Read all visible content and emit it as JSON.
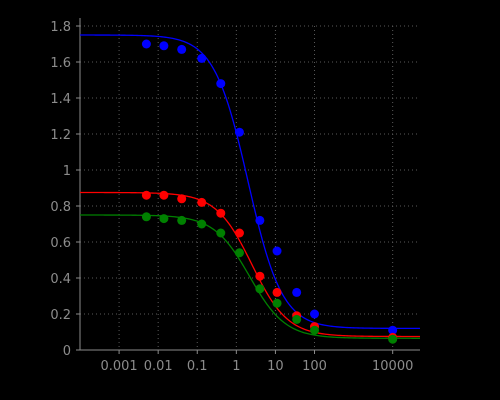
{
  "chart_data": {
    "type": "scatter",
    "title": "",
    "xlabel": "",
    "ylabel": "",
    "xscale": "log",
    "xlim": [
      0.0001,
      50000
    ],
    "ylim": [
      0,
      1.8
    ],
    "grid": true,
    "legend": "none",
    "x_ticks": [
      {
        "value": 0.001,
        "label": "0.001"
      },
      {
        "value": 0.01,
        "label": "0.01"
      },
      {
        "value": 0.1,
        "label": "0.1"
      },
      {
        "value": 1,
        "label": "1"
      },
      {
        "value": 10,
        "label": "10"
      },
      {
        "value": 100,
        "label": "100"
      },
      {
        "value": 10000,
        "label": "10000"
      }
    ],
    "y_ticks": [
      {
        "value": 0,
        "label": "0"
      },
      {
        "value": 0.2,
        "label": "0.2"
      },
      {
        "value": 0.4,
        "label": "0.4"
      },
      {
        "value": 0.6,
        "label": "0.6"
      },
      {
        "value": 0.8,
        "label": "0.8"
      },
      {
        "value": 1,
        "label": "1"
      },
      {
        "value": 1.2,
        "label": "1.2"
      },
      {
        "value": 1.4,
        "label": "1.4"
      },
      {
        "value": 1.6,
        "label": "1.6"
      },
      {
        "value": 1.8,
        "label": "1.8"
      }
    ],
    "series": [
      {
        "color": "#0000ff",
        "points": [
          {
            "x": 0.005,
            "y": 1.7
          },
          {
            "x": 0.014,
            "y": 1.69
          },
          {
            "x": 0.04,
            "y": 1.67
          },
          {
            "x": 0.13,
            "y": 1.62
          },
          {
            "x": 0.4,
            "y": 1.48
          },
          {
            "x": 1.2,
            "y": 1.21
          },
          {
            "x": 4,
            "y": 0.72
          },
          {
            "x": 11,
            "y": 0.55
          },
          {
            "x": 35,
            "y": 0.32
          },
          {
            "x": 100,
            "y": 0.2
          },
          {
            "x": 10000,
            "y": 0.11
          }
        ],
        "fit": {
          "top": 1.75,
          "bottom": 0.12,
          "ec50": 2.0,
          "hill": 1.0
        }
      },
      {
        "color": "#ff0000",
        "points": [
          {
            "x": 0.005,
            "y": 0.86
          },
          {
            "x": 0.014,
            "y": 0.86
          },
          {
            "x": 0.04,
            "y": 0.84
          },
          {
            "x": 0.13,
            "y": 0.82
          },
          {
            "x": 0.4,
            "y": 0.76
          },
          {
            "x": 1.2,
            "y": 0.65
          },
          {
            "x": 4,
            "y": 0.41
          },
          {
            "x": 11,
            "y": 0.32
          },
          {
            "x": 35,
            "y": 0.19
          },
          {
            "x": 100,
            "y": 0.13
          },
          {
            "x": 10000,
            "y": 0.07
          }
        ],
        "fit": {
          "top": 0.875,
          "bottom": 0.075,
          "ec50": 2.5,
          "hill": 0.95
        }
      },
      {
        "color": "#008000",
        "points": [
          {
            "x": 0.005,
            "y": 0.74
          },
          {
            "x": 0.014,
            "y": 0.73
          },
          {
            "x": 0.04,
            "y": 0.72
          },
          {
            "x": 0.13,
            "y": 0.7
          },
          {
            "x": 0.4,
            "y": 0.65
          },
          {
            "x": 1.2,
            "y": 0.54
          },
          {
            "x": 4,
            "y": 0.34
          },
          {
            "x": 11,
            "y": 0.26
          },
          {
            "x": 35,
            "y": 0.17
          },
          {
            "x": 100,
            "y": 0.11
          },
          {
            "x": 10000,
            "y": 0.06
          }
        ],
        "fit": {
          "top": 0.75,
          "bottom": 0.065,
          "ec50": 2.2,
          "hill": 0.95
        }
      }
    ]
  }
}
